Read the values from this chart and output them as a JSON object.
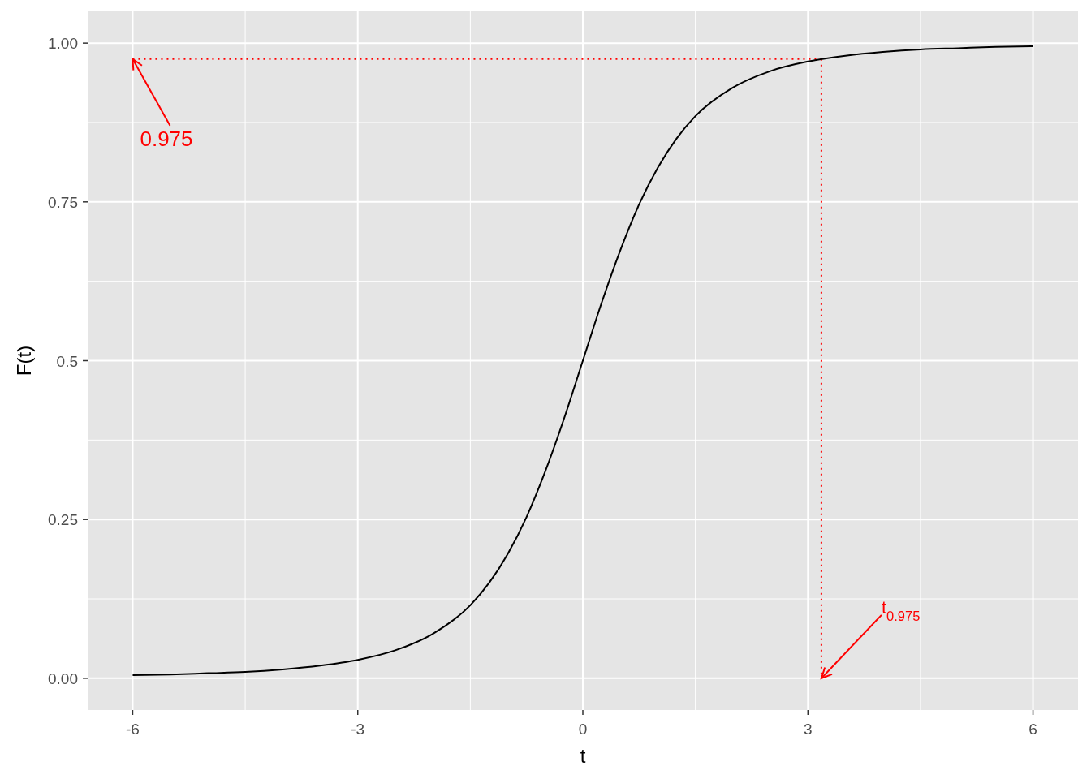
{
  "chart_data": {
    "type": "line",
    "xlabel": "t",
    "ylabel": "F(t)",
    "x": [
      -6,
      -5.5,
      -5,
      -4.5,
      -4,
      -3.5,
      -3,
      -2.5,
      -2,
      -1.5,
      -1.25,
      -1,
      -0.75,
      -0.5,
      -0.25,
      0,
      0.25,
      0.5,
      0.75,
      1,
      1.25,
      1.5,
      2,
      2.5,
      3,
      3.5,
      4,
      4.5,
      5,
      5.5,
      6
    ],
    "series": [
      {
        "color": "#000000",
        "values": [
          0.005,
          0.006,
          0.008,
          0.01,
          0.014,
          0.02,
          0.029,
          0.044,
          0.07,
          0.115,
          0.15,
          0.196,
          0.254,
          0.326,
          0.409,
          0.5,
          0.591,
          0.674,
          0.746,
          0.804,
          0.85,
          0.885,
          0.93,
          0.956,
          0.971,
          0.98,
          0.986,
          0.99,
          0.992,
          0.994,
          0.995
        ]
      }
    ],
    "xlim": [
      -6.6,
      6.6
    ],
    "ylim": [
      -0.05,
      1.05
    ],
    "xticks": [
      -6,
      -3,
      0,
      3,
      6
    ],
    "yticks": [
      {
        "value": 0,
        "label": "0.00"
      },
      0.25,
      0.5,
      0.75,
      {
        "value": 1,
        "label": "1.00"
      }
    ],
    "grid": true,
    "line_style": "solid",
    "marker": "none",
    "ref_lines": [
      {
        "axis": "y",
        "value": 0.975,
        "color": "#ff0000",
        "line_style": "dotted"
      },
      {
        "axis": "x",
        "value": 3.18,
        "color": "#ff0000",
        "line_style": "dotted"
      }
    ],
    "annotations": [
      {
        "text": "0.975",
        "x": -6,
        "y": 0.975
      },
      {
        "text": "t$_{0.975}$",
        "x": 3.18,
        "y": 0
      }
    ]
  }
}
